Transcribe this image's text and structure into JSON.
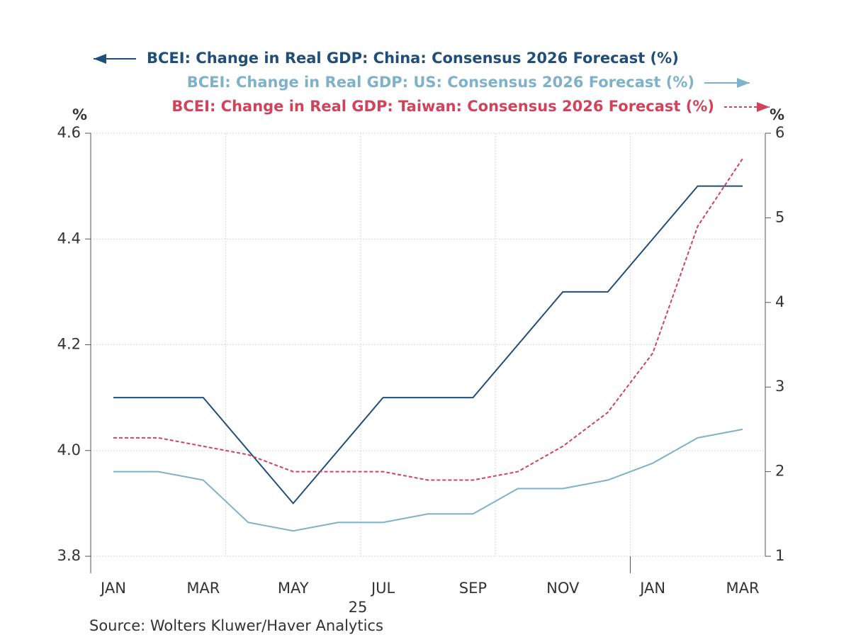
{
  "chart_data": {
    "type": "line",
    "categories": [
      "JAN",
      null,
      "MAR",
      null,
      "MAY",
      null,
      "JUL",
      null,
      "SEP",
      null,
      "NOV",
      null,
      "JAN",
      null,
      "MAR"
    ],
    "x_group_label": "25",
    "ylabel": "%",
    "y2label": "%",
    "ylim": [
      3.8,
      4.6
    ],
    "yticks": [
      3.8,
      {
        "value": 4,
        "label": "4.0"
      },
      4.2,
      4.4,
      4.6
    ],
    "y2lim": [
      1,
      6
    ],
    "y2ticks": [
      1,
      2,
      3,
      4,
      5,
      6
    ],
    "grid": true,
    "series": [
      {
        "name": "BCEI: Change in Real GDP: China: Consensus 2026 Forecast (%)",
        "color": "#1f4e79",
        "axis": "y",
        "values": [
          4.1,
          4.1,
          4.1,
          4.0,
          3.9,
          4.0,
          4.1,
          4.1,
          4.1,
          4.2,
          4.3,
          4.3,
          4.4,
          4.5,
          4.5
        ]
      },
      {
        "name": "BCEI: Change in Real GDP: US: Consensus 2026 Forecast (%)",
        "color": "#7fb2c8",
        "axis": "y2",
        "values": [
          2.0,
          2.0,
          1.9,
          1.4,
          1.3,
          1.4,
          1.4,
          1.5,
          1.5,
          1.8,
          1.8,
          1.9,
          2.1,
          2.4,
          2.5
        ]
      },
      {
        "name": "BCEI: Change in Real GDP: Taiwan: Consensus 2026 Forecast (%)",
        "color": "#d1435b",
        "axis": "y2",
        "dash": true,
        "values": [
          2.4,
          2.4,
          2.3,
          2.2,
          2.0,
          2.0,
          2.0,
          1.9,
          1.9,
          2.0,
          2.3,
          2.7,
          3.4,
          4.9,
          5.7
        ]
      }
    ],
    "source": "Source:  Wolters Kluwer/Haver Analytics"
  }
}
